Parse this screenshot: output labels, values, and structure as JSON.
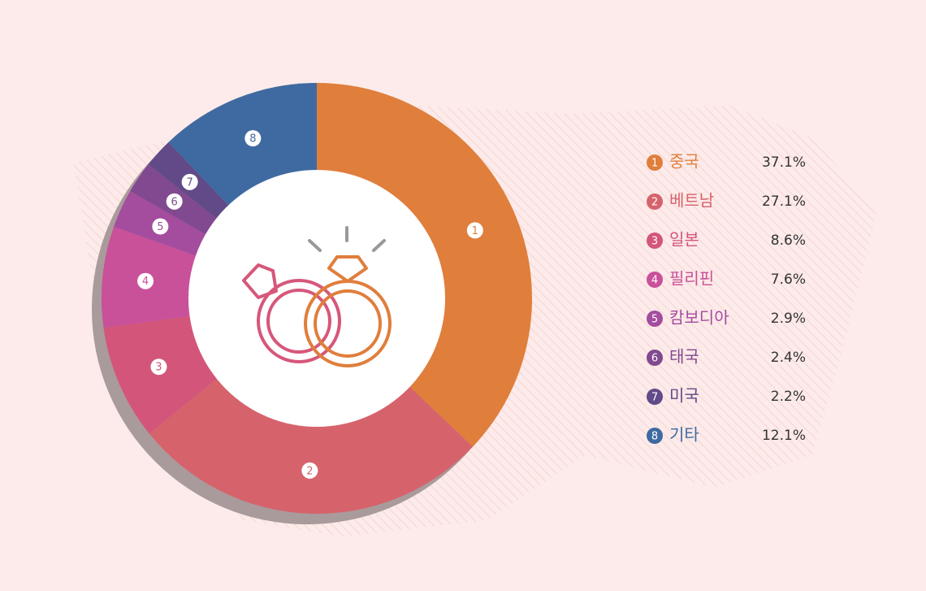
{
  "chart_data": {
    "type": "donut",
    "categories": [
      "중국",
      "베트남",
      "일본",
      "필리핀",
      "캄보디아",
      "태국",
      "미국",
      "기타"
    ],
    "markers": [
      "1",
      "2",
      "3",
      "4",
      "5",
      "6",
      "7",
      "8"
    ],
    "values": [
      37.1,
      27.1,
      8.6,
      7.6,
      2.9,
      2.4,
      2.2,
      12.1
    ],
    "value_labels": [
      "37.1%",
      "27.1%",
      "8.6%",
      "7.6%",
      "2.9%",
      "2.4%",
      "2.2%",
      "12.1%"
    ],
    "colors": [
      "#e07e3c",
      "#d6636c",
      "#d4557a",
      "#c9519a",
      "#a44c9e",
      "#81498f",
      "#614a87",
      "#3f6aa1"
    ],
    "legend": "right"
  }
}
